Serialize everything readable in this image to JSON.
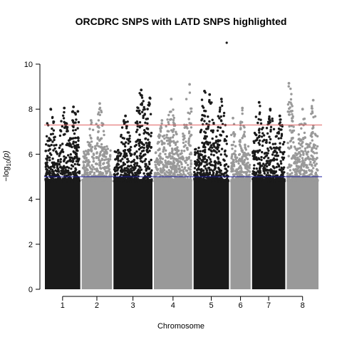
{
  "chart_data": {
    "type": "scatter",
    "title": "ORCDRC SNPS with LATD SNPS highlighted",
    "xlabel": "Chromosome",
    "ylabel_parts": {
      "minus": "−",
      "log": "log",
      "sub": "10",
      "var": "(p)"
    },
    "ylim": [
      0,
      10
    ],
    "y_ticks": [
      0,
      2,
      4,
      6,
      8,
      10
    ],
    "thresholds": [
      {
        "value": 7.3,
        "color": "#e06060"
      },
      {
        "value": 5.0,
        "color": "#1a1aa0"
      }
    ],
    "colors": {
      "dark": "#1a1a1a",
      "light": "#999999"
    },
    "chromosomes": [
      {
        "label": "1",
        "start": 0,
        "end": 51,
        "color": "dark",
        "peaks": [
          [
            8.0,
            0.15
          ],
          [
            8.05,
            0.55
          ],
          [
            8.1,
            0.82
          ],
          [
            7.9,
            0.95
          ]
        ]
      },
      {
        "label": "2",
        "start": 51,
        "end": 95,
        "color": "light",
        "peaks": [
          [
            8.25,
            0.6
          ],
          [
            7.5,
            0.3
          ]
        ]
      },
      {
        "label": "3",
        "start": 95,
        "end": 151,
        "color": "dark",
        "peaks": [
          [
            8.85,
            0.72
          ],
          [
            8.5,
            0.95
          ],
          [
            7.7,
            0.3
          ]
        ]
      },
      {
        "label": "4",
        "start": 151,
        "end": 206,
        "color": "light",
        "peaks": [
          [
            9.1,
            0.95
          ],
          [
            8.45,
            0.45
          ],
          [
            7.5,
            0.2
          ]
        ]
      },
      {
        "label": "5",
        "start": 206,
        "end": 257,
        "color": "dark",
        "peaks": [
          [
            8.8,
            0.3
          ],
          [
            8.65,
            0.45
          ],
          [
            8.45,
            0.8
          ]
        ]
      },
      {
        "label": "6",
        "start": 257,
        "end": 287,
        "color": "light",
        "peaks": [
          [
            7.6,
            0.1
          ],
          [
            8.05,
            0.6
          ]
        ]
      },
      {
        "label": "7",
        "start": 287,
        "end": 335,
        "color": "dark",
        "peaks": [
          [
            8.3,
            0.2
          ],
          [
            8.0,
            0.55
          ],
          [
            7.7,
            0.85
          ]
        ]
      },
      {
        "label": "8",
        "start": 335,
        "end": 381,
        "color": "light",
        "peaks": [
          [
            9.15,
            0.05
          ],
          [
            8.4,
            0.85
          ],
          [
            8.0,
            0.5
          ]
        ]
      }
    ],
    "outlier": {
      "chrom": "5",
      "pos": 0.92,
      "value": 11.0
    }
  }
}
